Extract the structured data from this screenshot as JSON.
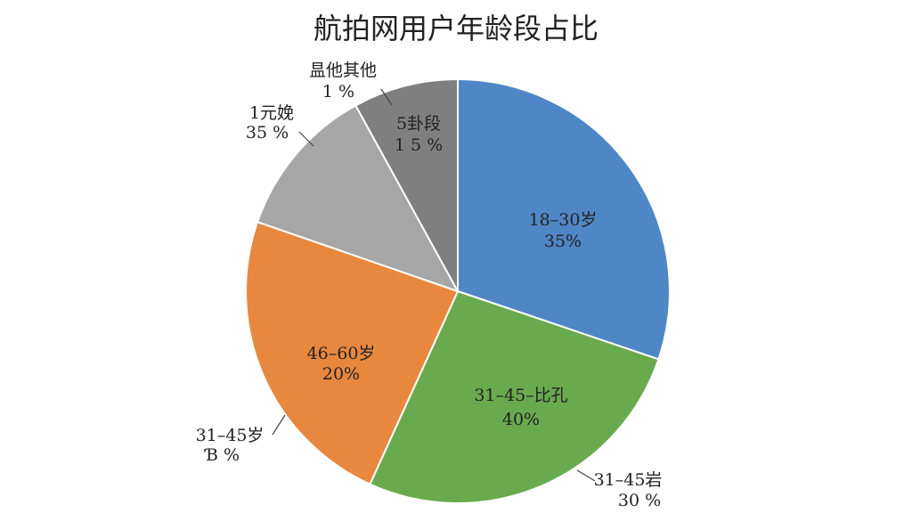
{
  "chart_data": {
    "type": "pie",
    "title": "航拍网用户年龄段占比",
    "values": [
      30.2,
      26.6,
      23.5,
      11.7,
      8.0
    ],
    "colors": [
      "#4f86c6",
      "#6aaa4f",
      "#e8883f",
      "#a6a6a6",
      "#7f7f7f"
    ],
    "annotations": [
      [
        "18–30岁",
        "35%"
      ],
      [
        "31–45–比孔",
        "40%"
      ],
      [
        "46–60岁",
        "20%"
      ],
      [
        "5卦段",
        "1 5 %"
      ],
      [
        "昷他其他",
        "1 %"
      ],
      [
        "1元娩",
        "35 %"
      ],
      [
        "31–45岁",
        "Ɓ %"
      ],
      [
        "31–45岩",
        "30 %"
      ]
    ]
  }
}
